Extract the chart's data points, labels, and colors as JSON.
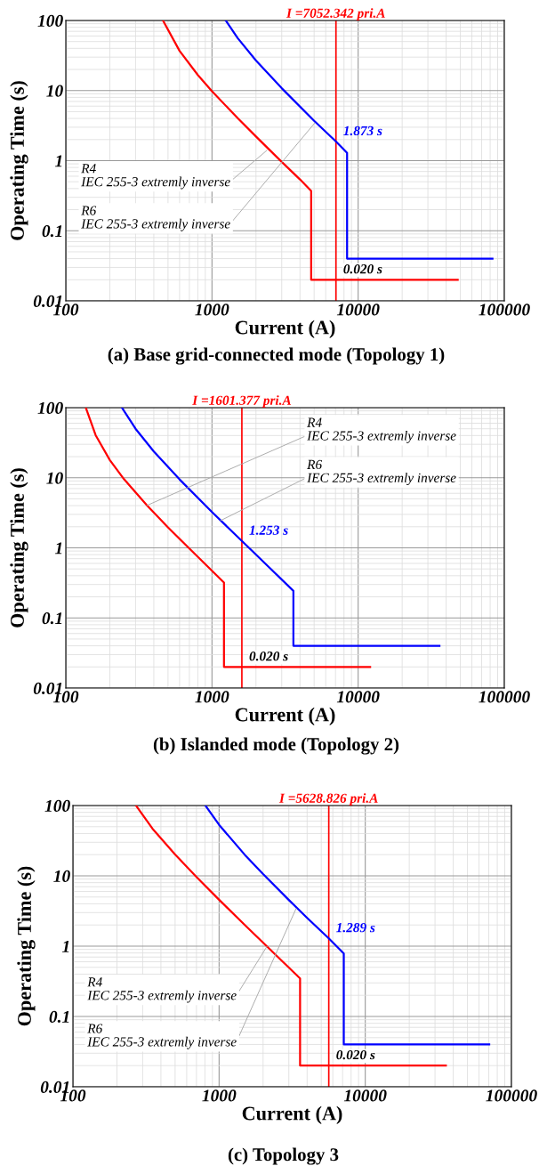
{
  "chart_data": [
    {
      "type": "line",
      "title": "(a) Base grid-connected mode (Topology 1)",
      "xlabel": "Current (A)",
      "ylabel": "Operating Time (s)",
      "log": "xy",
      "grid": true,
      "xlim": [
        100,
        100000
      ],
      "xticks": [
        100,
        1000,
        10000,
        100000
      ],
      "ylim": [
        0.01,
        100
      ],
      "yticks": [
        0.01,
        0.1,
        1,
        10,
        100
      ],
      "series": [
        {
          "color": "#ff0000",
          "x": [
            462,
            600,
            800,
            1000,
            1500,
            2000,
            3000,
            4000,
            4770,
            4770,
            48000
          ],
          "values": [
            100,
            36.9,
            16.7,
            9.8,
            4.03,
            2.21,
            0.96,
            0.54,
            0.37,
            0.02,
            0.02
          ]
        },
        {
          "color": "#0000ff",
          "x": [
            1242,
            1500,
            2000,
            3000,
            5000,
            7052.342,
            8400,
            8400,
            83000
          ],
          "values": [
            100,
            56,
            26.8,
            10.8,
            3.7,
            1.873,
            1.29,
            0.04,
            0.04
          ],
          "value_labels": [
            null,
            null,
            null,
            null,
            null,
            "1.873 s",
            null,
            null,
            null
          ]
        }
      ],
      "ref_lines": [
        {
          "axis": "x",
          "value": 7052.342,
          "label": "I =7052.342 pri.A",
          "color": "#ff0000"
        }
      ],
      "annotations": [
        {
          "text": "0.020 s",
          "x": 7052.342,
          "y": 0.02
        },
        {
          "text": "R4\nIEC 255-3 extremly inverse",
          "x": 2371,
          "y": 1.4
        },
        {
          "text": "R6\nIEC 255-3 extremly inverse",
          "x": 5047,
          "y": 3.44
        }
      ]
    },
    {
      "type": "line",
      "title": "(b) Islanded mode (Topology 2)",
      "xlabel": "Current (A)",
      "ylabel": "Operating Time (s)",
      "log": "xy",
      "grid": true,
      "xlim": [
        100,
        100000
      ],
      "xticks": [
        100,
        1000,
        10000,
        100000
      ],
      "ylim": [
        0.01,
        100
      ],
      "yticks": [
        0.01,
        0.1,
        1,
        10,
        100
      ],
      "series": [
        {
          "color": "#ff0000",
          "x": [
            137,
            160,
            200,
            250,
            359,
            500,
            700,
            1000,
            1208,
            1208,
            12080
          ],
          "values": [
            100,
            40.4,
            17.9,
            9.56,
            4.03,
            1.96,
            0.98,
            0.47,
            0.32,
            0.02,
            0.02
          ]
        },
        {
          "color": "#0000ff",
          "x": [
            242,
            300,
            400,
            600,
            1000,
            1601.377,
            2500,
            3606,
            3606,
            36000
          ],
          "values": [
            100,
            50,
            23.7,
            9.47,
            3.24,
            1.253,
            0.51,
            0.243,
            0.04,
            0.04
          ],
          "value_labels": [
            null,
            null,
            null,
            null,
            null,
            "1.253 s",
            null,
            null,
            null,
            null
          ]
        }
      ],
      "ref_lines": [
        {
          "axis": "x",
          "value": 1601.377,
          "label": "I =1601.377 pri.A",
          "color": "#ff0000"
        }
      ],
      "annotations": [
        {
          "text": "0.020 s",
          "x": 1601.377,
          "y": 0.02
        },
        {
          "text": "R4\nIEC 255-3 extremly inverse",
          "x": 359,
          "y": 4.03
        },
        {
          "text": "R6\nIEC 255-3 extremly inverse",
          "x": 1146,
          "y": 2.45
        }
      ]
    },
    {
      "type": "line",
      "title": "(c) Topology 3",
      "xlabel": "Current (A)",
      "ylabel": "Operating Time (s)",
      "log": "xy",
      "grid": true,
      "xlim": [
        100,
        100000
      ],
      "xticks": [
        100,
        1000,
        10000,
        100000
      ],
      "ylim": [
        0.01,
        100
      ],
      "yticks": [
        0.01,
        0.1,
        1,
        10,
        100
      ],
      "series": [
        {
          "color": "#ff0000",
          "x": [
            270,
            350,
            500,
            700,
            1000,
            1500,
            2500,
            3581,
            3581,
            35600
          ],
          "values": [
            100,
            47,
            20.1,
            9.62,
            4.57,
            2.0,
            0.715,
            0.347,
            0.02,
            0.02
          ]
        },
        {
          "color": "#0000ff",
          "x": [
            806,
            1000,
            1500,
            2000,
            3000,
            4000,
            5628.826,
            7130,
            7130,
            70500
          ],
          "values": [
            100,
            53.1,
            19.9,
            10.6,
            4.54,
            2.52,
            1.289,
            0.785,
            0.04,
            0.04
          ],
          "value_labels": [
            null,
            null,
            null,
            null,
            null,
            null,
            "1.289 s",
            null,
            null,
            null
          ]
        }
      ],
      "ref_lines": [
        {
          "axis": "x",
          "value": 5628.826,
          "label": "I =5628.826 pri.A",
          "color": "#ff0000"
        }
      ],
      "annotations": [
        {
          "text": "0.020 s",
          "x": 5628.826,
          "y": 0.02
        },
        {
          "text": "R4\nIEC 255-3 extremly inverse",
          "x": 2124,
          "y": 0.99
        },
        {
          "text": "R6\nIEC 255-3 extremly inverse",
          "x": 3357,
          "y": 3.4
        }
      ]
    }
  ]
}
